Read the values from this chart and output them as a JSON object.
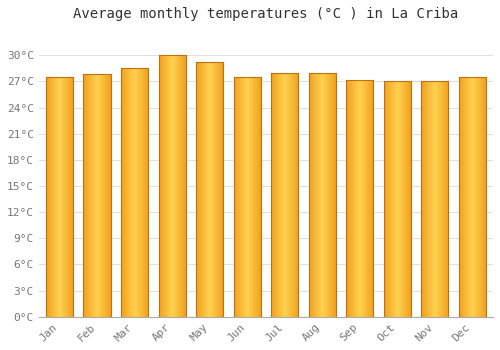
{
  "months": [
    "Jan",
    "Feb",
    "Mar",
    "Apr",
    "May",
    "Jun",
    "Jul",
    "Aug",
    "Sep",
    "Oct",
    "Nov",
    "Dec"
  ],
  "values": [
    27.5,
    27.8,
    28.5,
    30.0,
    29.2,
    27.5,
    28.0,
    28.0,
    27.2,
    27.0,
    27.1,
    27.5
  ],
  "title": "Average monthly temperatures (°C ) in La Criba",
  "ylim": [
    0,
    33
  ],
  "ytick_max": 30,
  "ytick_step": 3,
  "background_color": "#FFFFFF",
  "grid_color": "#DDDDDD",
  "bar_color_left": "#F0A020",
  "bar_color_center": "#FFD050",
  "bar_color_right": "#E09010",
  "bar_edge_color": "#B07800",
  "title_fontsize": 10,
  "tick_fontsize": 8,
  "font_family": "monospace"
}
